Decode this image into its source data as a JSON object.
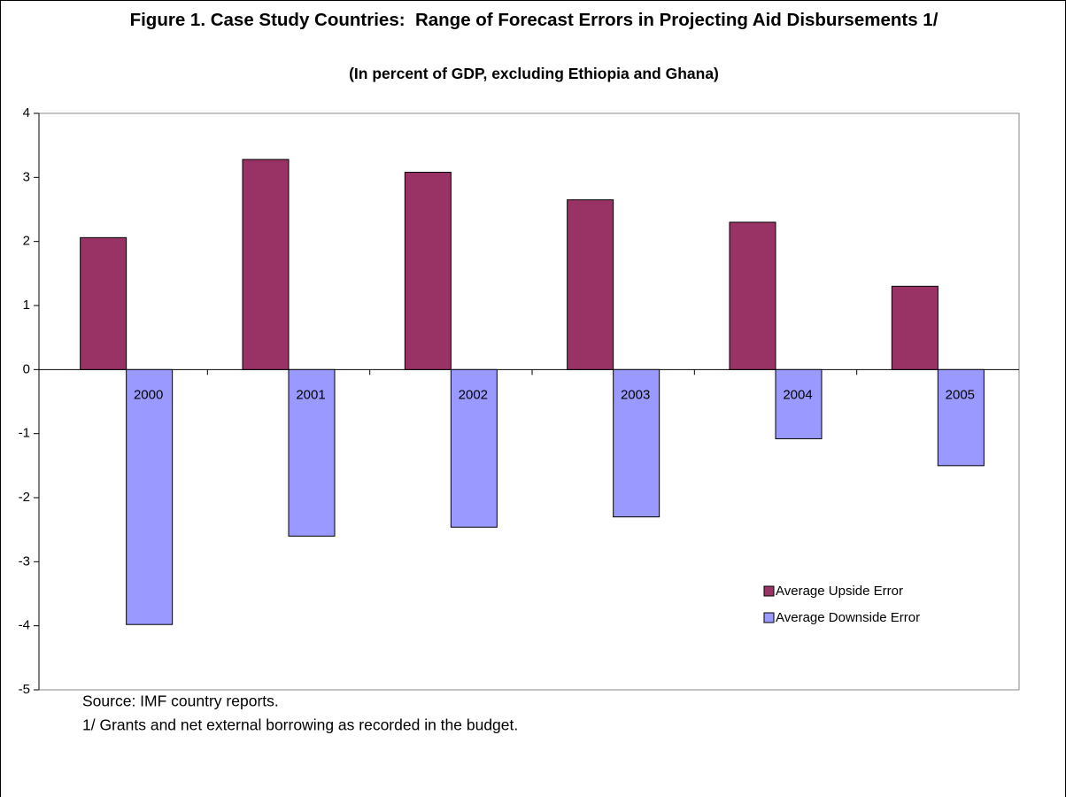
{
  "chart_data": {
    "type": "bar",
    "title": "Figure 1. Case Study Countries:  Range of Forecast Errors in Projecting Aid Disbursements 1/",
    "subtitle": "(In percent of GDP, excluding Ethiopia and Ghana)",
    "categories": [
      "2000",
      "2001",
      "2002",
      "2003",
      "2004",
      "2005"
    ],
    "series": [
      {
        "name": "Average Upside Error",
        "color": "#993366",
        "values": [
          2.06,
          3.28,
          3.08,
          2.65,
          2.3,
          1.3
        ]
      },
      {
        "name": "Average Downside Error",
        "color": "#9999ff",
        "values": [
          -3.98,
          -2.6,
          -2.46,
          -2.3,
          -1.08,
          -1.5
        ]
      }
    ],
    "ylim": [
      -5,
      4
    ],
    "yticks": [
      -5,
      -4,
      -3,
      -2,
      -1,
      0,
      1,
      2,
      3,
      4
    ],
    "grid": false,
    "legend": "lower right",
    "notes": [
      "Source:  IMF country reports.",
      "1/ Grants and net external borrowing as recorded in the budget."
    ]
  }
}
